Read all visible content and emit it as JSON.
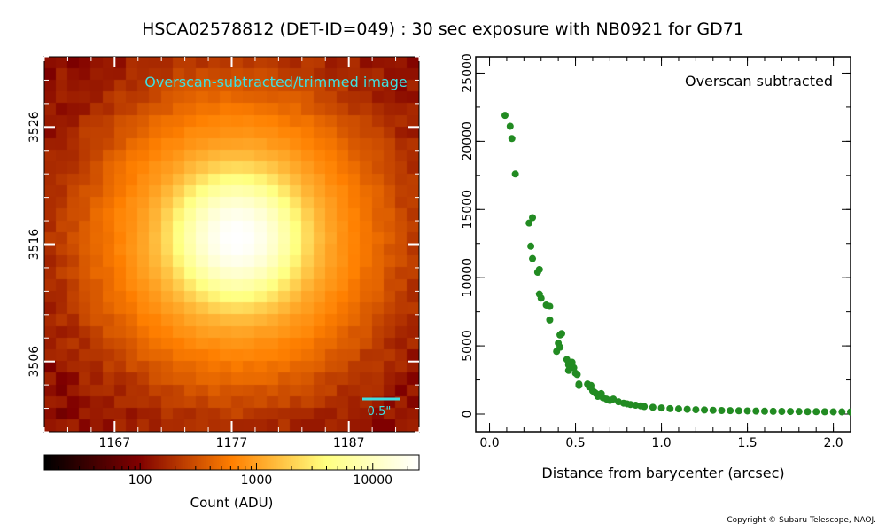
{
  "title": "HSCA02578812 (DET-ID=049) :  30 sec exposure with NB0921 for GD71",
  "copyright": "Copyright © Subaru Telescope, NAOJ.",
  "chart_data": [
    {
      "type": "heatmap",
      "panel": "image-stamp",
      "annotation": "Overscan-subtracted/trimmed image",
      "annotation_color": "#40e0e0",
      "scale_bar_label": "0.5\"",
      "scale_bar_color": "#40e0e0",
      "colormap": "afmhot",
      "x_tick_labels": [
        "1167",
        "1177",
        "1187"
      ],
      "y_tick_labels": [
        "3526",
        "3516",
        "3506"
      ],
      "x_ticks": [
        1167,
        1177,
        1187
      ],
      "y_ticks": [
        3526,
        3516,
        3506
      ],
      "xlim": [
        1161,
        1193
      ],
      "ylim": [
        3500,
        3532
      ],
      "peak_center": [
        1176.5,
        3515.5
      ],
      "colorbar": {
        "label": "Count (ADU)",
        "scale": "log",
        "tick_labels": [
          "100",
          "1000",
          "10000"
        ],
        "ticks": [
          100,
          1000,
          10000
        ],
        "range": [
          15,
          25000
        ]
      }
    },
    {
      "type": "scatter",
      "panel": "radial-profile",
      "annotation": "Overscan subtracted",
      "xlabel": "Distance from barycenter (arcsec)",
      "ylabel": "",
      "xlim": [
        -0.08,
        2.1
      ],
      "ylim": [
        -1300,
        26200
      ],
      "x_ticks": [
        0.0,
        0.5,
        1.0,
        1.5,
        2.0
      ],
      "x_tick_labels": [
        "0.0",
        "0.5",
        "1.0",
        "1.5",
        "2.0"
      ],
      "y_ticks": [
        0,
        5000,
        10000,
        15000,
        20000,
        25000
      ],
      "y_tick_labels": [
        "0",
        "5000",
        "10000",
        "15000",
        "20000",
        "25000"
      ],
      "color": "#228b22",
      "points": [
        [
          0.09,
          21900
        ],
        [
          0.12,
          21100
        ],
        [
          0.13,
          20200
        ],
        [
          0.15,
          17600
        ],
        [
          0.23,
          14000
        ],
        [
          0.24,
          12300
        ],
        [
          0.25,
          14400
        ],
        [
          0.25,
          11400
        ],
        [
          0.28,
          10400
        ],
        [
          0.29,
          10600
        ],
        [
          0.29,
          8800
        ],
        [
          0.3,
          8500
        ],
        [
          0.33,
          8000
        ],
        [
          0.35,
          7900
        ],
        [
          0.35,
          6900
        ],
        [
          0.41,
          5800
        ],
        [
          0.42,
          5900
        ],
        [
          0.4,
          5200
        ],
        [
          0.41,
          4900
        ],
        [
          0.39,
          4600
        ],
        [
          0.45,
          4000
        ],
        [
          0.46,
          3800
        ],
        [
          0.46,
          3600
        ],
        [
          0.47,
          3500
        ],
        [
          0.48,
          3800
        ],
        [
          0.49,
          3400
        ],
        [
          0.5,
          3000
        ],
        [
          0.46,
          3200
        ],
        [
          0.51,
          2900
        ],
        [
          0.52,
          2200
        ],
        [
          0.52,
          2100
        ],
        [
          0.57,
          2200
        ],
        [
          0.58,
          2000
        ],
        [
          0.59,
          2100
        ],
        [
          0.6,
          1700
        ],
        [
          0.61,
          1600
        ],
        [
          0.62,
          1500
        ],
        [
          0.63,
          1400
        ],
        [
          0.63,
          1300
        ],
        [
          0.65,
          1500
        ],
        [
          0.66,
          1200
        ],
        [
          0.68,
          1100
        ],
        [
          0.7,
          1000
        ],
        [
          0.72,
          1100
        ],
        [
          0.75,
          900
        ],
        [
          0.78,
          800
        ],
        [
          0.8,
          750
        ],
        [
          0.82,
          700
        ],
        [
          0.85,
          650
        ],
        [
          0.88,
          600
        ],
        [
          0.9,
          550
        ],
        [
          0.95,
          500
        ],
        [
          1.0,
          450
        ],
        [
          1.05,
          400
        ],
        [
          1.1,
          380
        ],
        [
          1.15,
          350
        ],
        [
          1.2,
          320
        ],
        [
          1.25,
          300
        ],
        [
          1.3,
          280
        ],
        [
          1.35,
          260
        ],
        [
          1.4,
          250
        ],
        [
          1.45,
          240
        ],
        [
          1.5,
          230
        ],
        [
          1.55,
          220
        ],
        [
          1.6,
          210
        ],
        [
          1.65,
          200
        ],
        [
          1.7,
          195
        ],
        [
          1.75,
          190
        ],
        [
          1.8,
          185
        ],
        [
          1.85,
          180
        ],
        [
          1.9,
          175
        ],
        [
          1.95,
          170
        ],
        [
          2.0,
          165
        ],
        [
          2.05,
          160
        ],
        [
          2.1,
          155
        ]
      ]
    }
  ]
}
